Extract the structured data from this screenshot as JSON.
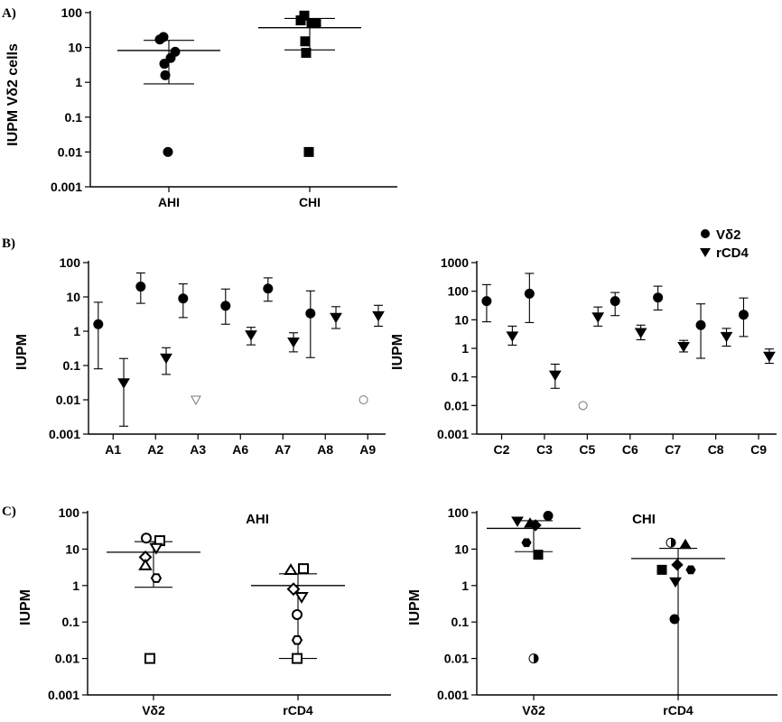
{
  "panel_labels": {
    "a": "A)",
    "b": "B)",
    "c": "C)"
  },
  "legend": [
    {
      "label": "Vδ2",
      "marker": "circle"
    },
    {
      "label": "rCD4",
      "marker": "triangle-down"
    }
  ],
  "chart_data": [
    {
      "id": "A",
      "type": "scatter",
      "title": "",
      "ylabel": "IUPM Vδ2 cells",
      "xlabel": "",
      "yscale": "log",
      "ylim": [
        0.001,
        100
      ],
      "yticks": [
        "0.001",
        "0.01",
        "0.1",
        "1",
        "10",
        "100"
      ],
      "categories": [
        "AHI",
        "CHI"
      ],
      "groups": [
        {
          "category": "AHI",
          "marker": "circle",
          "values": [
            20,
            17,
            7.5,
            5,
            3.4,
            1.6,
            0.01
          ],
          "median": 8.2,
          "whisker_low": 0.9,
          "whisker_high": 16
        },
        {
          "category": "CHI",
          "marker": "square",
          "values": [
            82,
            60,
            50,
            50,
            15,
            7,
            0.01
          ],
          "median": 37,
          "whisker_low": 8.5,
          "whisker_high": 68
        }
      ]
    },
    {
      "id": "B1",
      "type": "scatter",
      "title": "",
      "ylabel": "IUPM",
      "xlabel": "",
      "yscale": "log",
      "ylim": [
        0.001,
        100
      ],
      "yticks": [
        "0.001",
        "0.01",
        "0.1",
        "1",
        "10",
        "100"
      ],
      "categories": [
        "A1",
        "A2",
        "A3",
        "A6",
        "A7",
        "A8",
        "A9"
      ],
      "series": [
        {
          "name": "Vδ2",
          "marker": "circle",
          "points": [
            {
              "category": "A1",
              "value": 1.6,
              "err_low": 0.08,
              "err_high": 7
            },
            {
              "category": "A2",
              "value": 20,
              "err_low": 6.5,
              "err_high": 50
            },
            {
              "category": "A3",
              "value": 9,
              "err_low": 2.5,
              "err_high": 24
            },
            {
              "category": "A6",
              "value": 5.5,
              "err_low": 1.6,
              "err_high": 17
            },
            {
              "category": "A7",
              "value": 17.5,
              "err_low": 7.5,
              "err_high": 36
            },
            {
              "category": "A8",
              "value": 3.3,
              "err_low": 0.17,
              "err_high": 15
            },
            {
              "category": "A9",
              "value": 0.01,
              "hollow": true
            }
          ]
        },
        {
          "name": "rCD4",
          "marker": "triangle-down",
          "points": [
            {
              "category": "A1",
              "value": 0.032,
              "err_low": 0.0017,
              "err_high": 0.16
            },
            {
              "category": "A2",
              "value": 0.17,
              "err_low": 0.055,
              "err_high": 0.33
            },
            {
              "category": "A3",
              "value": 0.01,
              "hollow": true
            },
            {
              "category": "A6",
              "value": 0.8,
              "err_low": 0.4,
              "err_high": 1.3
            },
            {
              "category": "A7",
              "value": 0.5,
              "err_low": 0.25,
              "err_high": 0.9
            },
            {
              "category": "A8",
              "value": 2.6,
              "err_low": 1.2,
              "err_high": 5.2
            },
            {
              "category": "A9",
              "value": 2.9,
              "err_low": 1.4,
              "err_high": 5.7
            }
          ]
        }
      ]
    },
    {
      "id": "B2",
      "type": "scatter",
      "title": "",
      "ylabel": "IUPM",
      "xlabel": "",
      "yscale": "log",
      "ylim": [
        0.001,
        1000
      ],
      "yticks": [
        "0.001",
        "0.01",
        "0.1",
        "1",
        "10",
        "100",
        "1000"
      ],
      "categories": [
        "C2",
        "C3",
        "C5",
        "C6",
        "C7",
        "C8",
        "C9"
      ],
      "series": [
        {
          "name": "Vδ2",
          "marker": "circle",
          "points": [
            {
              "category": "C2",
              "value": 45,
              "err_low": 8.5,
              "err_high": 170
            },
            {
              "category": "C3",
              "value": 82,
              "err_low": 8,
              "err_high": 420
            },
            {
              "category": "C5",
              "value": 0.01,
              "hollow": true
            },
            {
              "category": "C6",
              "value": 45,
              "err_low": 14,
              "err_high": 90
            },
            {
              "category": "C7",
              "value": 60,
              "err_low": 22,
              "err_high": 150
            },
            {
              "category": "C8",
              "value": 6.5,
              "err_low": 0.45,
              "err_high": 36
            },
            {
              "category": "C9",
              "value": 15,
              "err_low": 2.6,
              "err_high": 58
            }
          ]
        },
        {
          "name": "rCD4",
          "marker": "triangle-down",
          "points": [
            {
              "category": "C2",
              "value": 2.8,
              "err_low": 1.3,
              "err_high": 6
            },
            {
              "category": "C3",
              "value": 0.12,
              "err_low": 0.04,
              "err_high": 0.28
            },
            {
              "category": "C5",
              "value": 13,
              "err_low": 6,
              "err_high": 28
            },
            {
              "category": "C6",
              "value": 3.7,
              "err_low": 2,
              "err_high": 6.5
            },
            {
              "category": "C7",
              "value": 1.2,
              "err_low": 0.75,
              "err_high": 1.9
            },
            {
              "category": "C8",
              "value": 2.7,
              "err_low": 1.2,
              "err_high": 5
            },
            {
              "category": "C9",
              "value": 0.55,
              "err_low": 0.3,
              "err_high": 0.95
            }
          ]
        }
      ]
    },
    {
      "id": "C1",
      "type": "scatter",
      "title": "AHI",
      "ylabel": "IUPM",
      "xlabel": "",
      "yscale": "log",
      "ylim": [
        0.001,
        100
      ],
      "yticks": [
        "0.001",
        "0.01",
        "0.1",
        "1",
        "10",
        "100"
      ],
      "categories": [
        "Vδ2",
        "rCD4"
      ],
      "groups": [
        {
          "category": "Vδ2",
          "median": 8.2,
          "whisker_low": 0.9,
          "whisker_high": 16,
          "points": [
            {
              "marker": "circle",
              "fill": "open",
              "value": 20,
              "dx": -8
            },
            {
              "marker": "square",
              "fill": "open",
              "value": 17,
              "dx": 7
            },
            {
              "marker": "triangle-down",
              "fill": "open",
              "value": 11,
              "dx": 3
            },
            {
              "marker": "diamond",
              "fill": "open",
              "value": 6,
              "dx": -9
            },
            {
              "marker": "triangle-up",
              "fill": "open",
              "value": 3.5,
              "dx": -9
            },
            {
              "marker": "hexagon",
              "fill": "open",
              "value": 1.6,
              "dx": 3
            },
            {
              "marker": "square",
              "fill": "open",
              "value": 0.01,
              "dx": -4
            }
          ]
        },
        {
          "category": "rCD4",
          "median": 1,
          "whisker_low": 0.01,
          "whisker_high": 2.1,
          "points": [
            {
              "marker": "triangle-up",
              "fill": "open",
              "value": 2.6,
              "dx": -8
            },
            {
              "marker": "square",
              "fill": "open",
              "value": 2.9,
              "dx": 6
            },
            {
              "marker": "diamond",
              "fill": "open",
              "value": 0.8,
              "dx": -5
            },
            {
              "marker": "triangle-down",
              "fill": "open",
              "value": 0.5,
              "dx": 4
            },
            {
              "marker": "circle",
              "fill": "open",
              "value": 0.16,
              "dx": -1
            },
            {
              "marker": "hexagon",
              "fill": "open",
              "value": 0.032,
              "dx": -1
            },
            {
              "marker": "square",
              "fill": "open",
              "value": 0.01,
              "dx": -1
            }
          ]
        }
      ]
    },
    {
      "id": "C2",
      "type": "scatter",
      "title": "CHI",
      "ylabel": "IUPM",
      "xlabel": "",
      "yscale": "log",
      "ylim": [
        0.001,
        100
      ],
      "yticks": [
        "0.001",
        "0.01",
        "0.1",
        "1",
        "10",
        "100"
      ],
      "categories": [
        "Vδ2",
        "rCD4"
      ],
      "groups": [
        {
          "category": "Vδ2",
          "median": 37,
          "whisker_low": 8.5,
          "whisker_high": 60,
          "points": [
            {
              "marker": "circle",
              "fill": "solid",
              "value": 82,
              "dx": 16
            },
            {
              "marker": "triangle-down",
              "fill": "solid",
              "value": 60,
              "dx": -18
            },
            {
              "marker": "diamond",
              "fill": "solid",
              "value": 45,
              "dx": 2
            },
            {
              "marker": "triangle-up",
              "fill": "solid",
              "value": 50,
              "dx": -4
            },
            {
              "marker": "hexagon",
              "fill": "solid",
              "value": 15,
              "dx": -8
            },
            {
              "marker": "square",
              "fill": "solid",
              "value": 7,
              "dx": 5
            },
            {
              "marker": "circle",
              "fill": "half",
              "value": 0.01,
              "dx": 0
            }
          ]
        },
        {
          "category": "rCD4",
          "median": 5.5,
          "whisker_low": 0.001,
          "whisker_high": 10.5,
          "points": [
            {
              "marker": "circle",
              "fill": "half",
              "value": 15,
              "dx": -8
            },
            {
              "marker": "triangle-up",
              "fill": "solid",
              "value": 13,
              "dx": 8
            },
            {
              "marker": "square",
              "fill": "solid",
              "value": 2.7,
              "dx": -18
            },
            {
              "marker": "diamond",
              "fill": "solid",
              "value": 3.7,
              "dx": -1
            },
            {
              "marker": "hexagon",
              "fill": "solid",
              "value": 2.7,
              "dx": 14
            },
            {
              "marker": "triangle-down",
              "fill": "solid",
              "value": 1.3,
              "dx": -3
            },
            {
              "marker": "circle",
              "fill": "solid",
              "value": 0.12,
              "dx": -4
            }
          ]
        }
      ]
    }
  ]
}
